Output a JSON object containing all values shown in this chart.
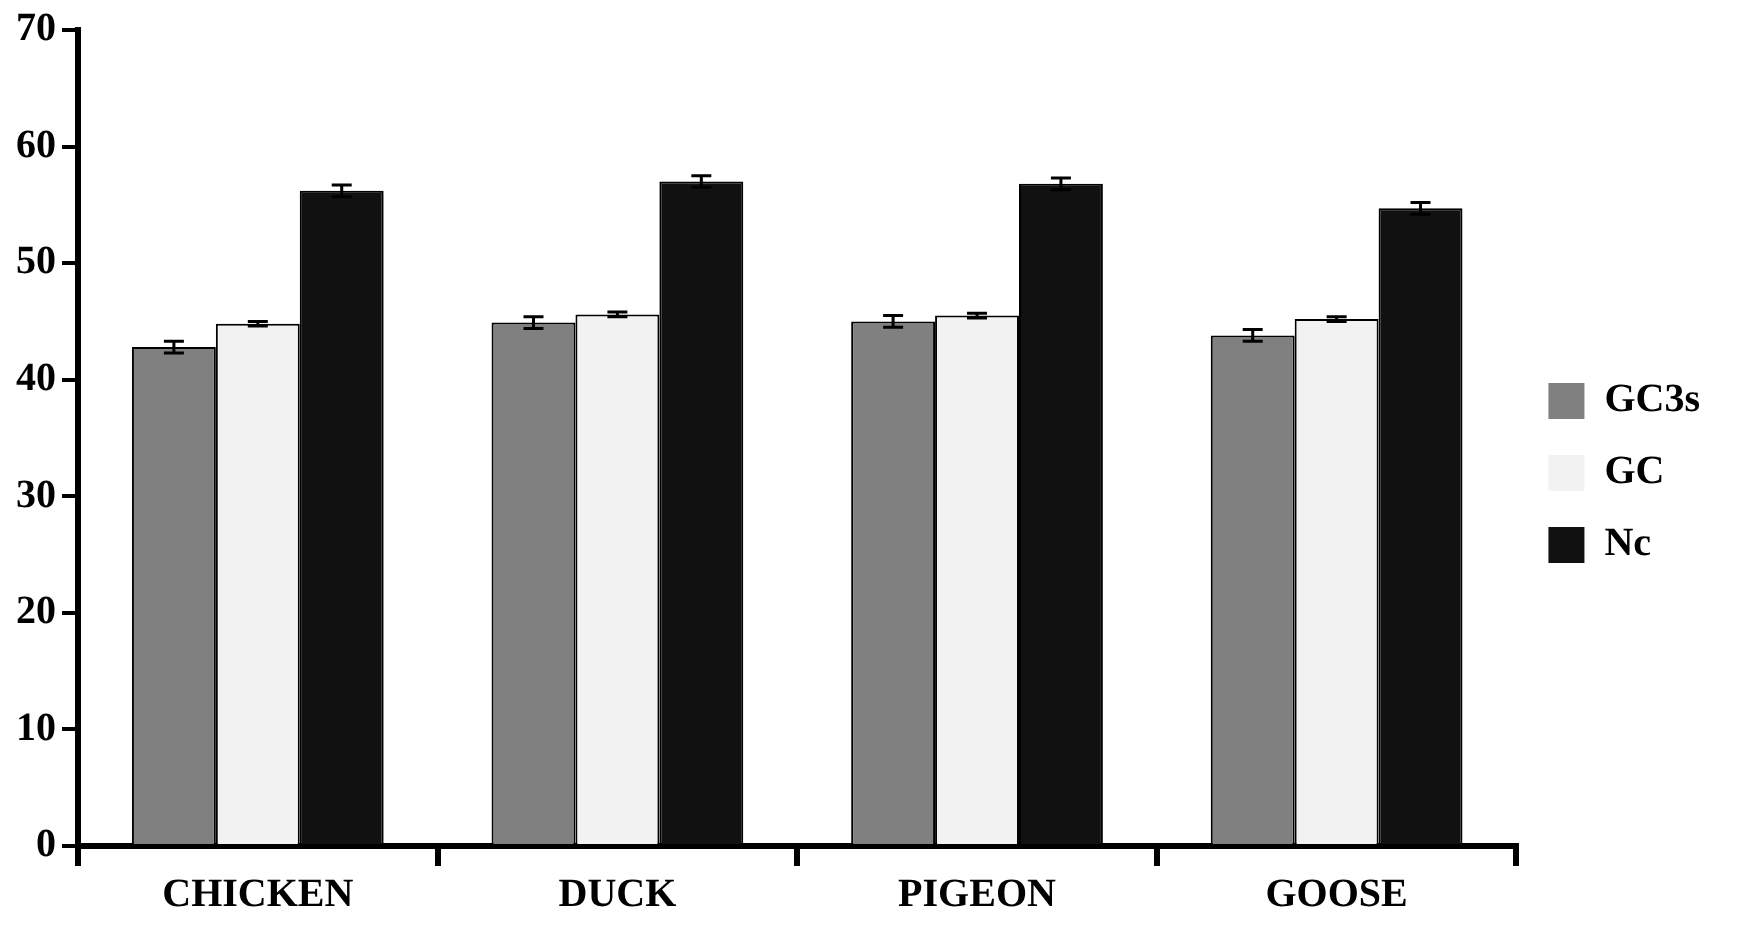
{
  "chart_data": {
    "type": "bar",
    "categories": [
      "CHICKEN",
      "DUCK",
      "PIGEON",
      "GOOSE"
    ],
    "series": [
      {
        "name": "GC3s",
        "color": "#808080",
        "values": [
          42.8,
          44.9,
          45.0,
          43.8
        ],
        "errors": [
          0.5,
          0.5,
          0.5,
          0.5
        ]
      },
      {
        "name": "GC",
        "color": "#f2f2f2",
        "values": [
          44.8,
          45.6,
          45.5,
          45.2
        ],
        "errors": [
          0.2,
          0.2,
          0.2,
          0.2
        ]
      },
      {
        "name": "Nc",
        "color": "#111111",
        "values": [
          56.2,
          57.0,
          56.8,
          54.7
        ],
        "errors": [
          0.5,
          0.5,
          0.5,
          0.5
        ]
      }
    ],
    "ylim": [
      0,
      70
    ],
    "yticks": [
      0,
      10,
      20,
      30,
      40,
      50,
      60,
      70
    ],
    "grid": false,
    "legend": "right"
  }
}
